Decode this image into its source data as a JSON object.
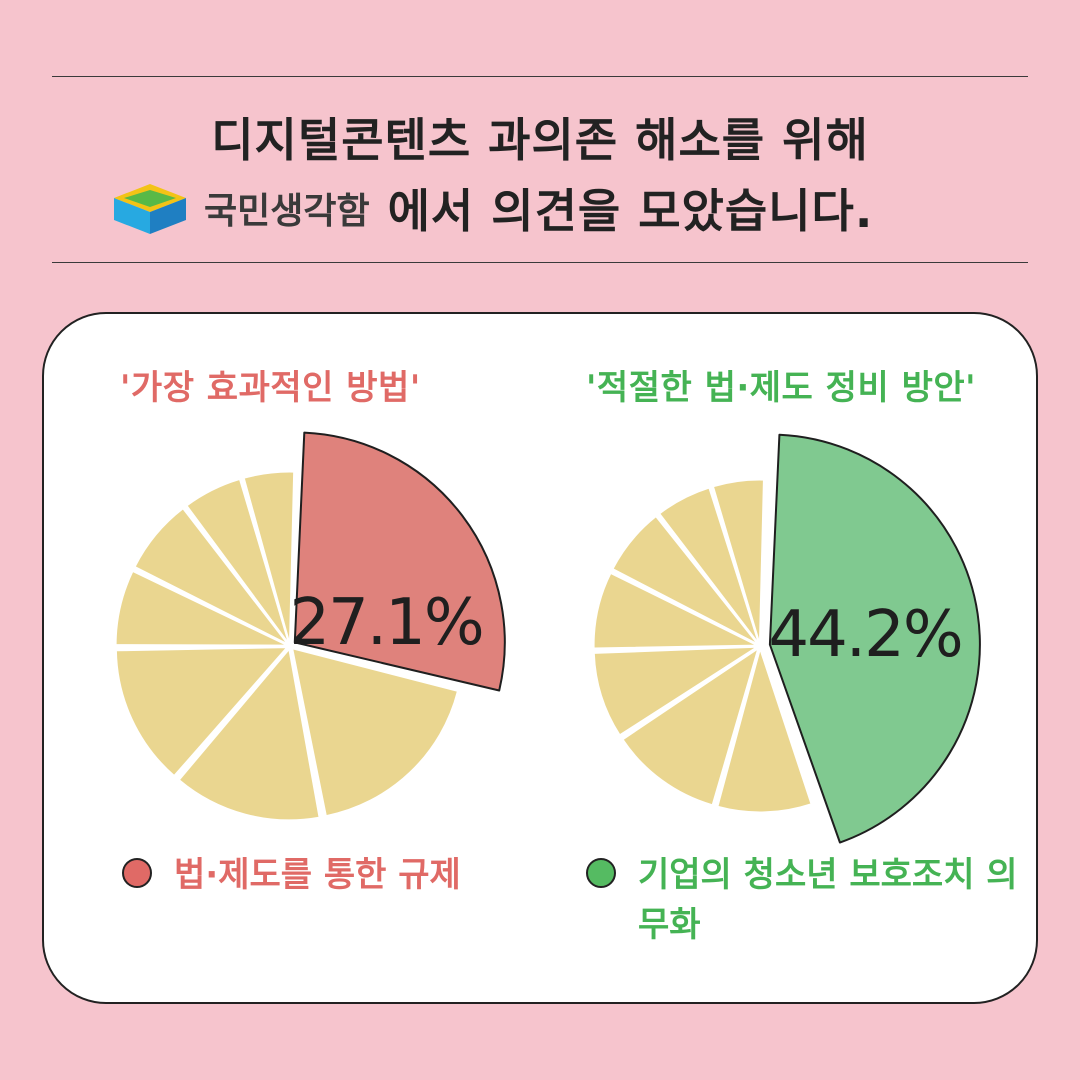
{
  "header": {
    "line1": "디지털콘텐츠 과의존 해소를 위해",
    "brand": "국민생각함",
    "line2_rest": "에서 의견을 모았습니다."
  },
  "colors": {
    "background": "#f6c4cd",
    "red": "#df827c",
    "green": "#80c990",
    "other": "#ead690"
  },
  "chart_data": [
    {
      "type": "pie",
      "title": "'가장 효과적인 방법'",
      "highlight_label": "27.1%",
      "legend": "법·제도를 통한 규제",
      "slices": [
        {
          "name": "법·제도를 통한 규제",
          "value": 27.1,
          "highlight": true
        },
        {
          "name": "",
          "value": 17.4
        },
        {
          "name": "",
          "value": 13.7
        },
        {
          "name": "",
          "value": 13.0
        },
        {
          "name": "",
          "value": 7.1
        },
        {
          "name": "",
          "value": 7.1
        },
        {
          "name": "",
          "value": 5.6
        },
        {
          "name": "",
          "value": 4.8
        }
      ]
    },
    {
      "type": "pie",
      "title": "'적절한 법·제도 정비 방안'",
      "highlight_label": "44.2%",
      "legend": "기업의 청소년 보호조치 의무화",
      "slices": [
        {
          "name": "기업의 청소년 보호조치 의무화",
          "value": 44.2,
          "highlight": true
        },
        {
          "name": "",
          "value": 9.6
        },
        {
          "name": "",
          "value": 11.4
        },
        {
          "name": "",
          "value": 8.8
        },
        {
          "name": "",
          "value": 7.9
        },
        {
          "name": "",
          "value": 7.0
        },
        {
          "name": "",
          "value": 5.8
        },
        {
          "name": "",
          "value": 5.3
        }
      ]
    }
  ]
}
